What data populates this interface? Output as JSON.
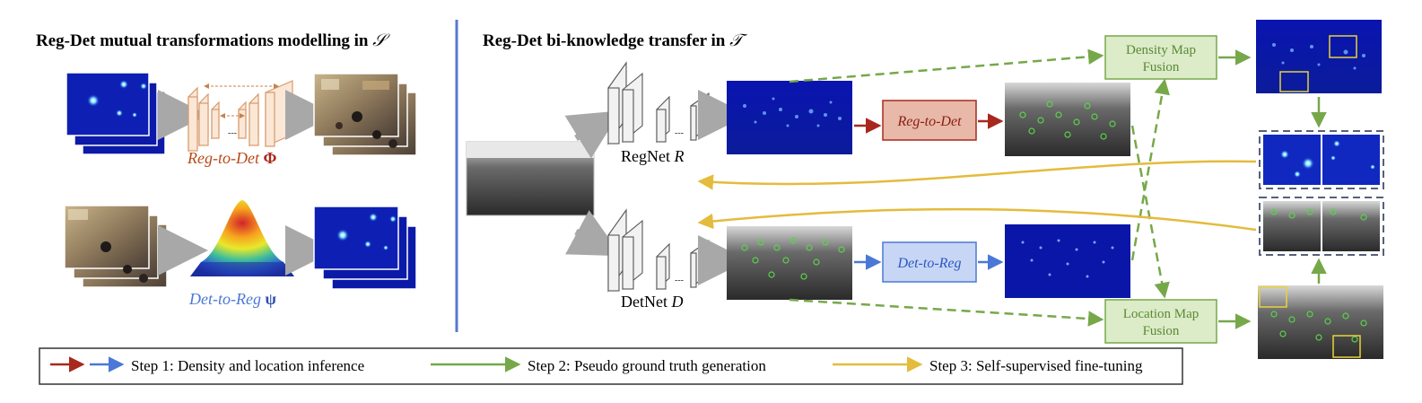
{
  "left_panel": {
    "title": "Reg-Det mutual transformations modelling in",
    "title_symbol": "𝒮",
    "reg_to_det_label": "Reg-to-Det",
    "reg_to_det_symbol": "Φ",
    "det_to_reg_label": "Det-to-Reg",
    "det_to_reg_symbol": "ψ"
  },
  "right_panel": {
    "title": "Reg-Det bi-knowledge transfer in",
    "title_symbol": "𝒯",
    "regnet_label": "RegNet",
    "regnet_symbol": "R",
    "detnet_label": "DetNet",
    "detnet_symbol": "D",
    "reg_to_det_box": "Reg-to-Det",
    "det_to_reg_box": "Det-to-Reg",
    "density_fusion_line1": "Density Map",
    "density_fusion_line2": "Fusion",
    "location_fusion_line1": "Location Map",
    "location_fusion_line2": "Fusion",
    "ellipsis": "---"
  },
  "legend": {
    "step1": "Step 1: Density and location inference",
    "step2": "Step 2: Pseudo ground truth generation",
    "step3": "Step 3: Self-supervised fine-tuning"
  },
  "colors": {
    "red": "#a8281e",
    "blue": "#4a78d6",
    "green": "#76a84a",
    "yellow": "#e4bb3c",
    "divider": "#5878d0",
    "gray_arrow": "#a8a8a8",
    "orange_cnn": "#d89a6c",
    "density_bg": "#0a1aa8",
    "dash_border": "#56607a"
  }
}
